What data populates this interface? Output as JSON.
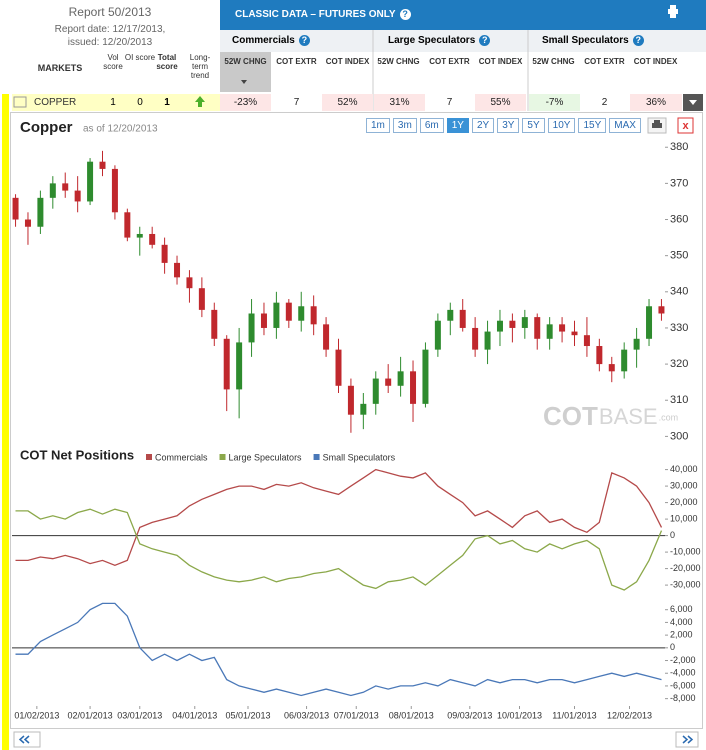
{
  "header": {
    "report": "Report 50/2013",
    "report_date": "Report date: 12/17/2013,",
    "issued": "issued: 12/20/2013",
    "banner": "CLASSIC DATA – FUTURES ONLY"
  },
  "table": {
    "left_columns": [
      "MARKETS",
      "Vol score",
      "OI score",
      "Total score",
      "Long-term trend"
    ],
    "groups": [
      {
        "name": "Commercials",
        "columns": [
          "52W CHNG",
          "COT EXTR",
          "COT INDEX"
        ]
      },
      {
        "name": "Large Speculators",
        "columns": [
          "52W CHNG",
          "COT EXTR",
          "COT INDEX"
        ]
      },
      {
        "name": "Small Speculators",
        "columns": [
          "52W CHNG",
          "COT EXTR",
          "COT INDEX"
        ]
      }
    ],
    "row": {
      "market": "COPPER",
      "scores": [
        "1",
        "0",
        "1"
      ],
      "cells": [
        "-23%",
        "7",
        "52%",
        "31%",
        "7",
        "55%",
        "-7%",
        "2",
        "36%"
      ]
    }
  },
  "controls": {
    "ranges": [
      "1m",
      "3m",
      "6m",
      "1Y",
      "2Y",
      "3Y",
      "5Y",
      "10Y",
      "15Y",
      "MAX"
    ],
    "active_range": "1Y",
    "close": "x"
  },
  "chart_data": [
    {
      "type": "candlestick",
      "title": "Copper",
      "subtitle": "as of 12/20/2013",
      "watermark": {
        "bold": "COT",
        "light": "BASE",
        "suffix": ".com"
      },
      "up_color": "#2e8b2e",
      "down_color": "#c0282d",
      "x": [
        "12/21/2012",
        "12/28/2012",
        "01/04/2013",
        "01/11/2013",
        "01/18/2013",
        "01/25/2013",
        "02/01/2013",
        "02/08/2013",
        "02/15/2013",
        "02/22/2013",
        "03/01/2013",
        "03/08/2013",
        "03/15/2013",
        "03/22/2013",
        "03/29/2013",
        "04/05/2013",
        "04/12/2013",
        "04/19/2013",
        "04/26/2013",
        "05/03/2013",
        "05/10/2013",
        "05/17/2013",
        "05/24/2013",
        "05/31/2013",
        "06/07/2013",
        "06/14/2013",
        "06/21/2013",
        "06/28/2013",
        "07/05/2013",
        "07/12/2013",
        "07/19/2013",
        "07/26/2013",
        "08/02/2013",
        "08/09/2013",
        "08/16/2013",
        "08/23/2013",
        "08/30/2013",
        "09/06/2013",
        "09/13/2013",
        "09/20/2013",
        "09/27/2013",
        "10/04/2013",
        "10/11/2013",
        "10/18/2013",
        "10/25/2013",
        "11/01/2013",
        "11/08/2013",
        "11/15/2013",
        "11/22/2013",
        "11/29/2013",
        "12/06/2013",
        "12/13/2013",
        "12/20/2013"
      ],
      "open": [
        366,
        360,
        358,
        366,
        370,
        368,
        365,
        376,
        374,
        362,
        355,
        356,
        353,
        348,
        344,
        341,
        335,
        327,
        313,
        326,
        334,
        330,
        337,
        332,
        336,
        331,
        324,
        314,
        306,
        309,
        316,
        314,
        318,
        309,
        324,
        332,
        335,
        330,
        324,
        329,
        332,
        330,
        333,
        327,
        331,
        329,
        328,
        325,
        320,
        318,
        324,
        327,
        336
      ],
      "high": [
        367,
        362,
        368,
        372,
        373,
        372,
        377,
        379,
        375,
        363,
        358,
        358,
        355,
        350,
        346,
        344,
        337,
        328,
        330,
        338,
        337,
        340,
        338,
        340,
        339,
        333,
        327,
        316,
        312,
        318,
        320,
        322,
        321,
        326,
        334,
        337,
        338,
        333,
        332,
        335,
        334,
        335,
        334,
        333,
        333,
        332,
        333,
        327,
        322,
        326,
        330,
        338,
        338
      ],
      "low": [
        358,
        353,
        356,
        363,
        366,
        362,
        364,
        372,
        360,
        354,
        350,
        352,
        345,
        342,
        337,
        333,
        325,
        307,
        305,
        322,
        328,
        327,
        330,
        329,
        328,
        322,
        312,
        301,
        302,
        306,
        312,
        311,
        304,
        308,
        322,
        328,
        329,
        322,
        320,
        325,
        326,
        327,
        324,
        324,
        326,
        325,
        322,
        318,
        315,
        316,
        319,
        325,
        332
      ],
      "close": [
        360,
        358,
        366,
        370,
        368,
        365,
        376,
        374,
        362,
        355,
        356,
        353,
        348,
        344,
        341,
        335,
        327,
        313,
        326,
        334,
        330,
        337,
        332,
        336,
        331,
        324,
        314,
        306,
        309,
        316,
        314,
        318,
        309,
        324,
        332,
        335,
        330,
        324,
        329,
        332,
        330,
        333,
        327,
        331,
        329,
        328,
        325,
        320,
        318,
        324,
        327,
        336,
        334
      ],
      "xlim": [
        "12/19/2012",
        "12/22/2013"
      ],
      "ylim": [
        299,
        382
      ],
      "yticks": [
        300,
        310,
        320,
        330,
        340,
        350,
        360,
        370,
        380
      ]
    },
    {
      "type": "line",
      "title": "COT Net Positions",
      "legend": true,
      "zero_line": true,
      "x": [
        "12/21/2012",
        "12/28/2012",
        "01/04/2013",
        "01/11/2013",
        "01/18/2013",
        "01/25/2013",
        "02/01/2013",
        "02/08/2013",
        "02/15/2013",
        "02/22/2013",
        "03/01/2013",
        "03/08/2013",
        "03/15/2013",
        "03/22/2013",
        "03/29/2013",
        "04/05/2013",
        "04/12/2013",
        "04/19/2013",
        "04/26/2013",
        "05/03/2013",
        "05/10/2013",
        "05/17/2013",
        "05/24/2013",
        "05/31/2013",
        "06/07/2013",
        "06/14/2013",
        "06/21/2013",
        "06/28/2013",
        "07/05/2013",
        "07/12/2013",
        "07/19/2013",
        "07/26/2013",
        "08/02/2013",
        "08/09/2013",
        "08/16/2013",
        "08/23/2013",
        "08/30/2013",
        "09/06/2013",
        "09/13/2013",
        "09/20/2013",
        "09/27/2013",
        "10/04/2013",
        "10/11/2013",
        "10/18/2013",
        "10/25/2013",
        "11/01/2013",
        "11/08/2013",
        "11/15/2013",
        "11/22/2013",
        "11/29/2013",
        "12/06/2013",
        "12/13/2013",
        "12/20/2013"
      ],
      "series": [
        {
          "name": "Commercials",
          "color": "#b54a4a",
          "values": [
            -15000,
            -15000,
            -13000,
            -14000,
            -12000,
            -14000,
            -17000,
            -15000,
            -18000,
            -15000,
            5000,
            8000,
            10000,
            12000,
            18000,
            22000,
            25000,
            28000,
            30000,
            30000,
            28000,
            31000,
            30000,
            32000,
            29000,
            27000,
            25000,
            30000,
            35000,
            40000,
            38000,
            36000,
            35000,
            38000,
            30000,
            25000,
            20000,
            12000,
            15000,
            10000,
            5000,
            12000,
            15000,
            8000,
            10000,
            5000,
            2000,
            8000,
            38000,
            35000,
            30000,
            20000,
            5000
          ]
        },
        {
          "name": "Large Speculators",
          "color": "#8ba84a",
          "values": [
            15000,
            15000,
            10000,
            12000,
            10000,
            14000,
            16000,
            13000,
            16000,
            14000,
            -5000,
            -8000,
            -10000,
            -12000,
            -18000,
            -22000,
            -25000,
            -27000,
            -28000,
            -27000,
            -25000,
            -28000,
            -26000,
            -25000,
            -23000,
            -22000,
            -20000,
            -25000,
            -30000,
            -32000,
            -28000,
            -27000,
            -25000,
            -30000,
            -24000,
            -18000,
            -12000,
            -2000,
            0,
            -5000,
            -3000,
            -8000,
            -10000,
            -5000,
            -8000,
            -5000,
            -3000,
            -8000,
            -30000,
            -33000,
            -28000,
            -15000,
            3000
          ]
        }
      ],
      "xlim": [
        "12/19/2012",
        "12/22/2013"
      ],
      "ylim": [
        -36000,
        44000
      ],
      "yticks": [
        {
          "value": 40000,
          "label": "40,000"
        },
        {
          "value": 30000,
          "label": "30,000"
        },
        {
          "value": 20000,
          "label": "20,000"
        },
        {
          "value": 10000,
          "label": "10,000"
        },
        0,
        {
          "value": -10000,
          "label": "-10,000"
        },
        {
          "value": -20000,
          "label": "-20,000"
        },
        {
          "value": -30000,
          "label": "-30,000"
        }
      ]
    },
    {
      "type": "line",
      "legend": true,
      "zero_line": true,
      "x": [
        "12/21/2012",
        "12/28/2012",
        "01/04/2013",
        "01/11/2013",
        "01/18/2013",
        "01/25/2013",
        "02/01/2013",
        "02/08/2013",
        "02/15/2013",
        "02/22/2013",
        "03/01/2013",
        "03/08/2013",
        "03/15/2013",
        "03/22/2013",
        "03/29/2013",
        "04/05/2013",
        "04/12/2013",
        "04/19/2013",
        "04/26/2013",
        "05/03/2013",
        "05/10/2013",
        "05/17/2013",
        "05/24/2013",
        "05/31/2013",
        "06/07/2013",
        "06/14/2013",
        "06/21/2013",
        "06/28/2013",
        "07/05/2013",
        "07/12/2013",
        "07/19/2013",
        "07/26/2013",
        "08/02/2013",
        "08/09/2013",
        "08/16/2013",
        "08/23/2013",
        "08/30/2013",
        "09/06/2013",
        "09/13/2013",
        "09/20/2013",
        "09/27/2013",
        "10/04/2013",
        "10/11/2013",
        "10/18/2013",
        "10/25/2013",
        "11/01/2013",
        "11/08/2013",
        "11/15/2013",
        "11/22/2013",
        "11/29/2013",
        "12/06/2013",
        "12/13/2013",
        "12/20/2013"
      ],
      "series": [
        {
          "name": "Small Speculators",
          "color": "#4a78b8",
          "values": [
            -1000,
            -1000,
            1000,
            2000,
            3000,
            4000,
            6000,
            7000,
            7000,
            5000,
            0,
            -2000,
            -1000,
            -2000,
            -1000,
            -2000,
            -1500,
            -5000,
            -6000,
            -6500,
            -7000,
            -6500,
            -7000,
            -7500,
            -7000,
            -6500,
            -7000,
            -7500,
            -7000,
            -6000,
            -6500,
            -6000,
            -6000,
            -5500,
            -6000,
            -5000,
            -5500,
            -6000,
            -5000,
            -5500,
            -5000,
            -5000,
            -5500,
            -5000,
            -5000,
            -5500,
            -5000,
            -4500,
            -4000,
            -4500,
            -4000,
            -4500,
            -5000
          ]
        }
      ],
      "xlim": [
        "12/19/2012",
        "12/22/2013"
      ],
      "ylim": [
        -9000,
        8000
      ],
      "yticks": [
        {
          "value": 6000,
          "label": "6,000"
        },
        {
          "value": 4000,
          "label": "4,000"
        },
        {
          "value": 2000,
          "label": "2,000"
        },
        0,
        {
          "value": -2000,
          "label": "-2,000"
        },
        {
          "value": -4000,
          "label": "-4,000"
        },
        {
          "value": -6000,
          "label": "-6,000"
        },
        {
          "value": -8000,
          "label": "-8,000"
        }
      ],
      "xticks": [
        "01/02/2013",
        "02/01/2013",
        "03/01/2013",
        "04/01/2013",
        "05/01/2013",
        "06/03/2013",
        "07/01/2013",
        "08/01/2013",
        "09/03/2013",
        "10/01/2013",
        "11/01/2013",
        "12/02/2013"
      ]
    }
  ]
}
